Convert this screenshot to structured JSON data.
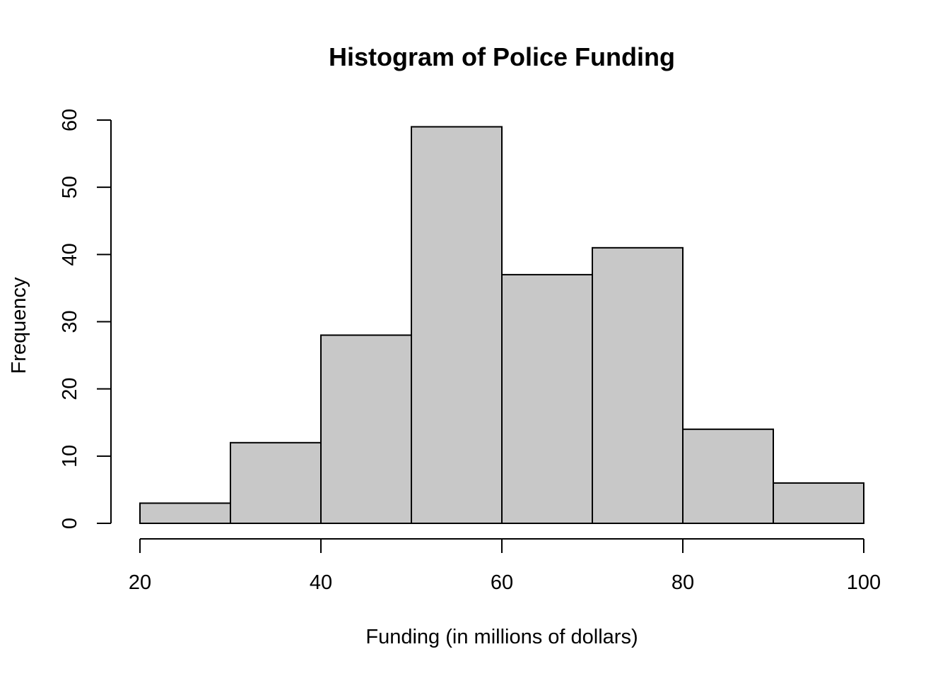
{
  "chart_data": {
    "type": "bar",
    "title": "Histogram of Police Funding",
    "xlabel": "Funding (in millions of dollars)",
    "ylabel": "Frequency",
    "bins": [
      {
        "from": 20,
        "to": 30,
        "count": 3
      },
      {
        "from": 30,
        "to": 40,
        "count": 12
      },
      {
        "from": 40,
        "to": 50,
        "count": 28
      },
      {
        "from": 50,
        "to": 60,
        "count": 59
      },
      {
        "from": 60,
        "to": 70,
        "count": 37
      },
      {
        "from": 70,
        "to": 80,
        "count": 41
      },
      {
        "from": 80,
        "to": 90,
        "count": 14
      },
      {
        "from": 90,
        "to": 100,
        "count": 6
      }
    ],
    "xlim": [
      20,
      100
    ],
    "ylim": [
      0,
      60
    ],
    "x_ticks": [
      "20",
      "40",
      "60",
      "80",
      "100"
    ],
    "y_ticks": [
      "0",
      "10",
      "20",
      "30",
      "40",
      "50",
      "60"
    ],
    "grid": false,
    "bar_color": "#c8c8c8",
    "edge_color": "#000000"
  }
}
